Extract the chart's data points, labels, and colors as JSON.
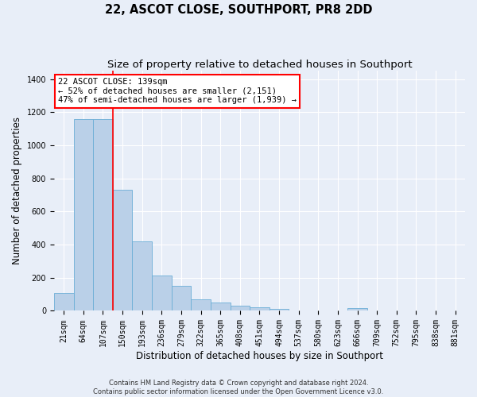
{
  "title": "22, ASCOT CLOSE, SOUTHPORT, PR8 2DD",
  "subtitle": "Size of property relative to detached houses in Southport",
  "xlabel": "Distribution of detached houses by size in Southport",
  "ylabel": "Number of detached properties",
  "footer_line1": "Contains HM Land Registry data © Crown copyright and database right 2024.",
  "footer_line2": "Contains public sector information licensed under the Open Government Licence v3.0.",
  "bin_labels": [
    "21sqm",
    "64sqm",
    "107sqm",
    "150sqm",
    "193sqm",
    "236sqm",
    "279sqm",
    "322sqm",
    "365sqm",
    "408sqm",
    "451sqm",
    "494sqm",
    "537sqm",
    "580sqm",
    "623sqm",
    "666sqm",
    "709sqm",
    "752sqm",
    "795sqm",
    "838sqm",
    "881sqm"
  ],
  "bar_heights": [
    107,
    1160,
    1160,
    730,
    420,
    215,
    150,
    70,
    48,
    30,
    20,
    14,
    0,
    0,
    0,
    15,
    0,
    0,
    0,
    0,
    0
  ],
  "bar_color": "#bad0e8",
  "bar_edge_color": "#6baed6",
  "red_line_bin_index": 2.5,
  "annotation_text": "22 ASCOT CLOSE: 139sqm\n← 52% of detached houses are smaller (2,151)\n47% of semi-detached houses are larger (1,939) →",
  "annotation_box_color": "white",
  "annotation_box_edge": "red",
  "ylim": [
    0,
    1450
  ],
  "yticks": [
    0,
    200,
    400,
    600,
    800,
    1000,
    1200,
    1400
  ],
  "background_color": "#e8eef8",
  "grid_color": "white",
  "title_fontsize": 10.5,
  "subtitle_fontsize": 9.5,
  "xlabel_fontsize": 8.5,
  "ylabel_fontsize": 8.5,
  "tick_fontsize": 7,
  "annotation_fontsize": 7.5,
  "footer_fontsize": 6
}
